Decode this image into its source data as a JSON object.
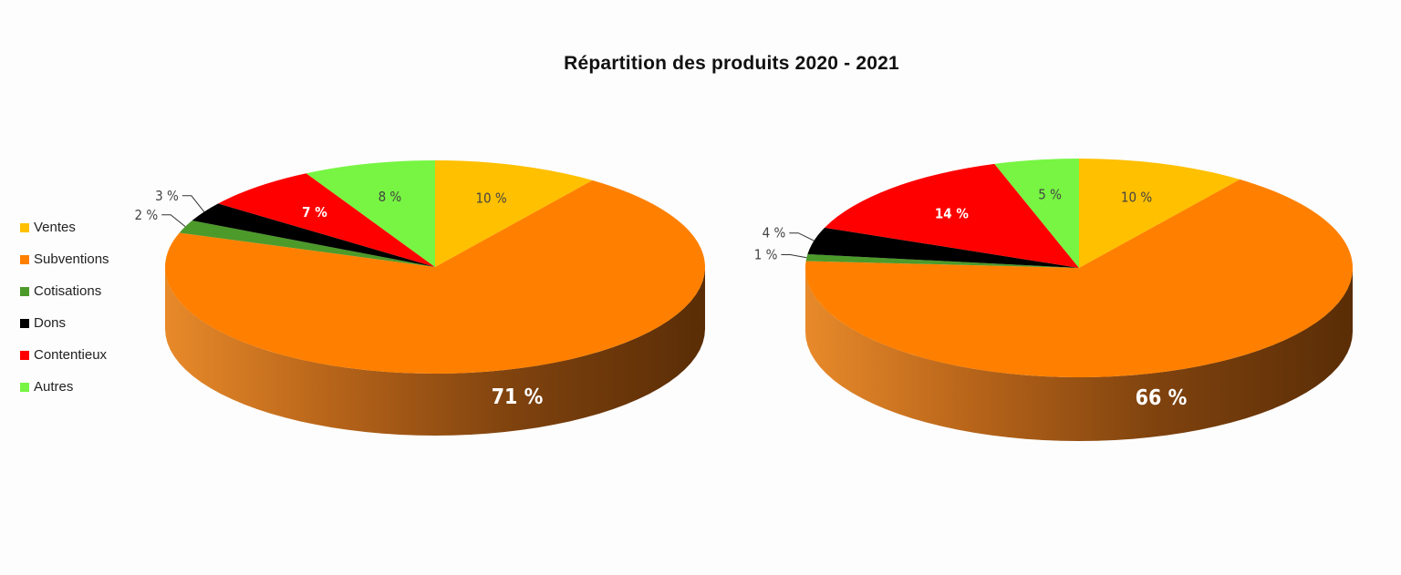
{
  "chart_data": {
    "type": "pie",
    "title": "Répartition des produits 2020 - 2021",
    "legend_position": "left",
    "categories": [
      "Ventes",
      "Subventions",
      "Cotisations",
      "Dons",
      "Contentieux",
      "Autres"
    ],
    "colors": [
      "#FFC000",
      "#FF8000",
      "#4C9A2A",
      "#000000",
      "#FF0000",
      "#77F542"
    ],
    "pies": [
      {
        "values": [
          10,
          71,
          2,
          3,
          7,
          8
        ],
        "labels": [
          "10 %",
          "71 %",
          "2 %",
          "3 %",
          "7 %",
          "8 %"
        ]
      },
      {
        "values": [
          10,
          66,
          1,
          4,
          14,
          5
        ],
        "labels": [
          "10 %",
          "66 %",
          "1 %",
          "4 %",
          "14 %",
          "5 %"
        ]
      }
    ]
  }
}
